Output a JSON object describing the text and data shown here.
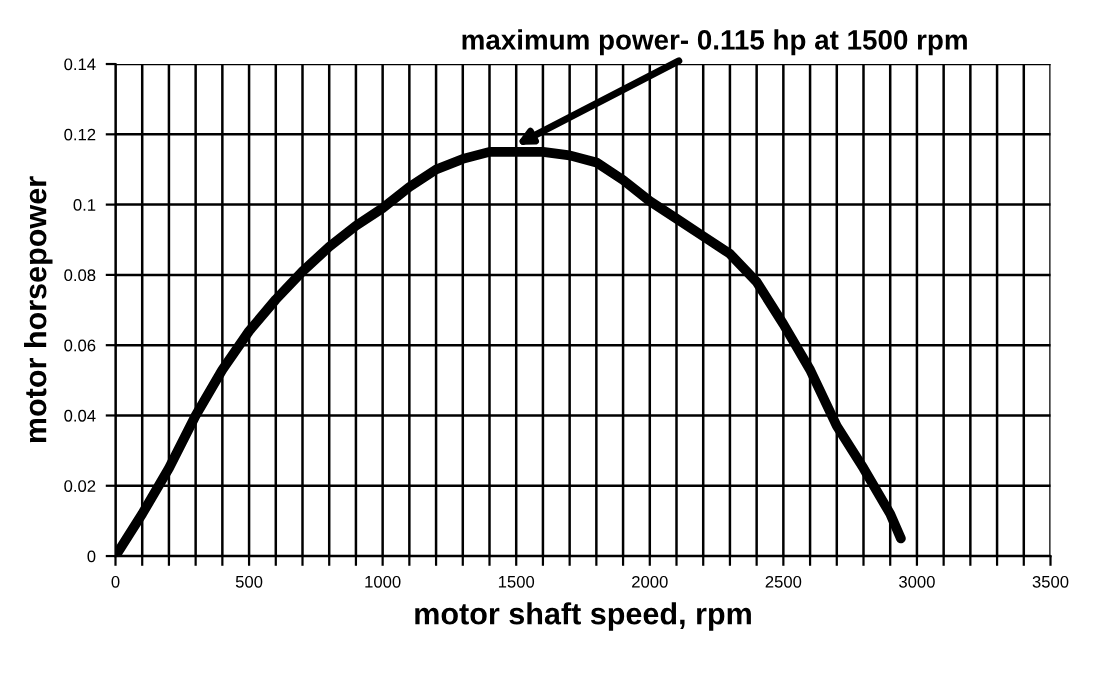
{
  "chart_data": {
    "type": "line",
    "xlabel": "motor shaft speed, rpm",
    "ylabel": "motor horsepower",
    "annotations": [
      {
        "text": "maximum power- 0.115 hp at 1500 rpm",
        "x": 1500,
        "y": 0.117
      }
    ],
    "x": [
      0,
      100,
      200,
      300,
      400,
      500,
      600,
      700,
      800,
      900,
      1000,
      1100,
      1200,
      1300,
      1400,
      1500,
      1600,
      1700,
      1800,
      1900,
      2000,
      2100,
      2200,
      2300,
      2400,
      2500,
      2600,
      2700,
      2800,
      2900,
      2940
    ],
    "series": [
      {
        "color": "#000000",
        "values": [
          0,
          0.012,
          0.025,
          0.04,
          0.053,
          0.064,
          0.073,
          0.081,
          0.088,
          0.094,
          0.099,
          0.105,
          0.11,
          0.113,
          0.115,
          0.115,
          0.115,
          0.114,
          0.112,
          0.107,
          0.101,
          0.096,
          0.091,
          0.086,
          0.078,
          0.066,
          0.053,
          0.037,
          0.025,
          0.012,
          0.005
        ]
      }
    ],
    "xlim": [
      0,
      3500
    ],
    "ylim": [
      0,
      0.14
    ],
    "xticks": [
      0,
      {
        "value": 100,
        "label": null
      },
      {
        "value": 200,
        "label": null
      },
      {
        "value": 300,
        "label": null
      },
      {
        "value": 400,
        "label": null
      },
      500,
      {
        "value": 600,
        "label": null
      },
      {
        "value": 700,
        "label": null
      },
      {
        "value": 800,
        "label": null
      },
      {
        "value": 900,
        "label": null
      },
      1000,
      {
        "value": 1100,
        "label": null
      },
      {
        "value": 1200,
        "label": null
      },
      {
        "value": 1300,
        "label": null
      },
      {
        "value": 1400,
        "label": null
      },
      1500,
      {
        "value": 1600,
        "label": null
      },
      {
        "value": 1700,
        "label": null
      },
      {
        "value": 1800,
        "label": null
      },
      {
        "value": 1900,
        "label": null
      },
      2000,
      {
        "value": 2100,
        "label": null
      },
      {
        "value": 2200,
        "label": null
      },
      {
        "value": 2300,
        "label": null
      },
      {
        "value": 2400,
        "label": null
      },
      2500,
      {
        "value": 2600,
        "label": null
      },
      {
        "value": 2700,
        "label": null
      },
      {
        "value": 2800,
        "label": null
      },
      {
        "value": 2900,
        "label": null
      },
      3000,
      {
        "value": 3100,
        "label": null
      },
      {
        "value": 3200,
        "label": null
      },
      {
        "value": 3300,
        "label": null
      },
      {
        "value": 3400,
        "label": null
      },
      3500
    ],
    "yticks": [
      0,
      0.02,
      0.04,
      0.06,
      0.08,
      0.1,
      0.12,
      0.14
    ],
    "grid": true,
    "marker": "none",
    "line_style": "solid"
  }
}
